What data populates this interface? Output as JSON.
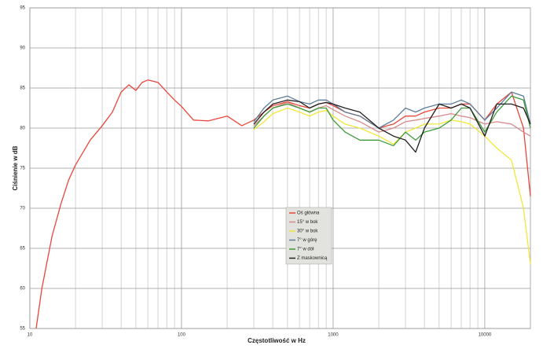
{
  "chart_data": {
    "type": "line",
    "x_label": "Częstotliwość w Hz",
    "y_label": "Ciśnienie w dB",
    "log_x": true,
    "grid": true,
    "x": [
      11,
      12,
      14,
      16,
      18,
      20,
      25,
      30,
      35,
      40,
      45,
      50,
      55,
      60,
      70,
      80,
      90,
      100,
      120,
      150,
      200,
      250,
      300,
      350,
      400,
      500,
      600,
      700,
      800,
      900,
      1000,
      1200,
      1500,
      2000,
      2500,
      3000,
      3500,
      4000,
      5000,
      6000,
      7000,
      8000,
      10000,
      12000,
      15000,
      18000,
      20000
    ],
    "series": [
      {
        "name": "Oś główna",
        "color": "#e8473b",
        "values": [
          55,
          60,
          66.5,
          70.5,
          73.5,
          75.4,
          78.5,
          80.3,
          82,
          84.5,
          85.4,
          84.7,
          85.7,
          86,
          85.7,
          84.5,
          83.5,
          82.7,
          81,
          80.9,
          81.5,
          80.3,
          81,
          82,
          82.8,
          83.3,
          82.8,
          82.5,
          83,
          83.2,
          82.8,
          82,
          81.5,
          80,
          80.5,
          81.5,
          81.5,
          82,
          82.5,
          82.5,
          83,
          83,
          81,
          83,
          84.5,
          80,
          71.5
        ]
      },
      {
        "name": "15° w bok",
        "color": "#d98a8a",
        "values": [
          null,
          null,
          null,
          null,
          null,
          null,
          null,
          null,
          null,
          null,
          null,
          null,
          null,
          null,
          null,
          null,
          null,
          null,
          null,
          null,
          null,
          null,
          80.3,
          81.5,
          82.5,
          83.2,
          82.5,
          82,
          82.5,
          82.8,
          82.3,
          81.5,
          80.8,
          79.5,
          80,
          80.8,
          81,
          81.2,
          81.5,
          81.8,
          81.5,
          81.3,
          80.5,
          80.8,
          80.5,
          79.5,
          79
        ]
      },
      {
        "name": "30° w bok",
        "color": "#f0e838",
        "values": [
          null,
          null,
          null,
          null,
          null,
          null,
          null,
          null,
          null,
          null,
          null,
          null,
          null,
          null,
          null,
          null,
          null,
          null,
          null,
          null,
          null,
          null,
          79.8,
          80.8,
          81.8,
          82.5,
          82,
          81.5,
          82,
          82.2,
          81.5,
          80.5,
          80,
          79,
          78,
          79.5,
          80,
          80.5,
          80.5,
          81,
          80.8,
          80.5,
          79,
          77.5,
          76,
          70,
          63
        ]
      },
      {
        "name": "7° w górę",
        "color": "#5e7d99",
        "values": [
          null,
          null,
          null,
          null,
          null,
          null,
          null,
          null,
          null,
          null,
          null,
          null,
          null,
          null,
          null,
          null,
          null,
          null,
          null,
          null,
          null,
          null,
          80.8,
          82.5,
          83.5,
          84,
          83.3,
          83,
          83.5,
          83.5,
          83,
          82,
          81.5,
          80,
          81,
          82.5,
          82,
          82.5,
          83,
          83,
          83.5,
          83,
          81,
          82.5,
          84.5,
          84,
          80.5
        ]
      },
      {
        "name": "7° w dół",
        "color": "#3f9a3a",
        "values": [
          null,
          null,
          null,
          null,
          null,
          null,
          null,
          null,
          null,
          null,
          null,
          null,
          null,
          null,
          null,
          null,
          null,
          null,
          null,
          null,
          null,
          null,
          80,
          81.5,
          82.5,
          83,
          82.5,
          82,
          82.5,
          82.5,
          81,
          79.5,
          78.5,
          78.5,
          77.8,
          79.5,
          78.5,
          79.5,
          80,
          81,
          82.5,
          82.5,
          79.5,
          82,
          84,
          83.5,
          80
        ]
      },
      {
        "name": "Z maskownicą",
        "color": "#222222",
        "values": [
          null,
          null,
          null,
          null,
          null,
          null,
          null,
          null,
          null,
          null,
          null,
          null,
          null,
          null,
          null,
          null,
          null,
          null,
          null,
          null,
          null,
          null,
          80.5,
          82,
          83,
          83.5,
          83.3,
          82.5,
          83,
          83.2,
          83,
          82.5,
          82,
          80,
          79,
          78.5,
          77,
          80,
          83,
          82.5,
          83,
          82.5,
          79,
          83,
          83,
          82.5,
          80.5
        ]
      }
    ],
    "xlim": [
      10,
      20000
    ],
    "xticks": [
      10,
      100,
      1000,
      10000
    ],
    "xminorticks": [
      20,
      30,
      40,
      50,
      60,
      70,
      80,
      90,
      200,
      300,
      400,
      500,
      600,
      700,
      800,
      900,
      2000,
      3000,
      4000,
      5000,
      6000,
      7000,
      8000,
      9000
    ],
    "ylim": [
      55,
      95
    ],
    "yticks": [
      55,
      60,
      65,
      70,
      75,
      80,
      85,
      90,
      95
    ]
  }
}
